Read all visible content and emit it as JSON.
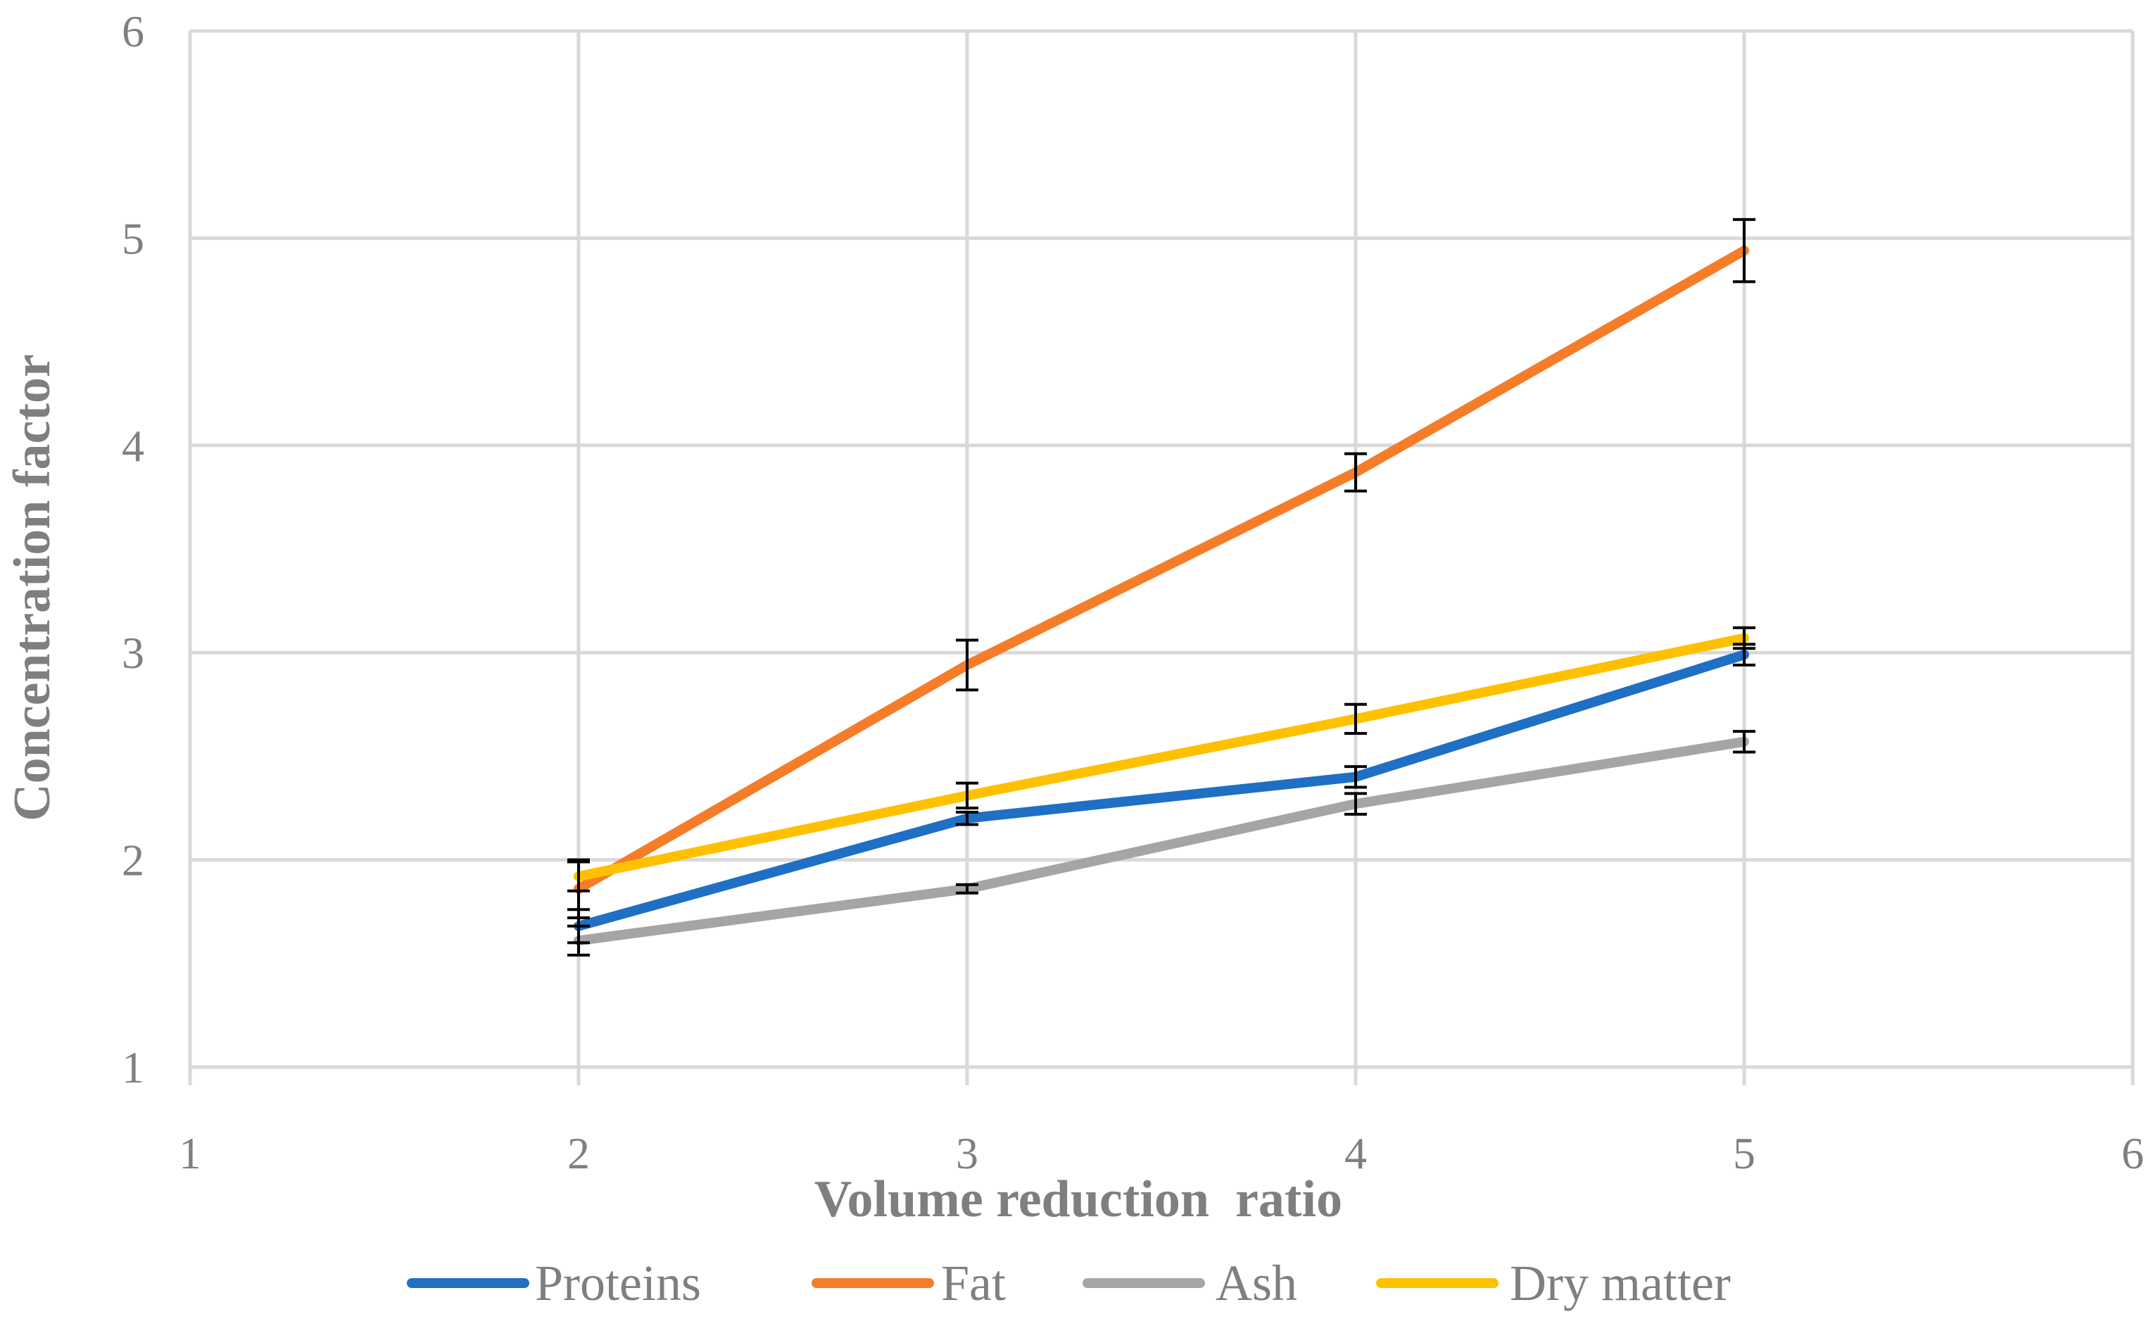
{
  "chart_data": {
    "type": "line",
    "title": "",
    "xlabel": "Volume reduction  ratio",
    "ylabel": "Concentration factor",
    "xlim": [
      1,
      6
    ],
    "ylim": [
      1,
      6
    ],
    "x_ticks": [
      "1",
      "2",
      "3",
      "4",
      "5",
      "6"
    ],
    "y_ticks": [
      "1",
      "2",
      "3",
      "4",
      "5",
      "6"
    ],
    "grid": true,
    "legend_position": "bottom",
    "x": [
      2,
      3,
      4,
      5
    ],
    "series": [
      {
        "name": "Proteins",
        "color": "#1f6fc5",
        "values": [
          1.68,
          2.2,
          2.4,
          2.99
        ],
        "errors": [
          0.08,
          0.03,
          0.05,
          0.05
        ]
      },
      {
        "name": "Fat",
        "color": "#f57d2a",
        "values": [
          1.86,
          2.94,
          3.87,
          4.94
        ],
        "errors": [
          0.14,
          0.12,
          0.09,
          0.15
        ]
      },
      {
        "name": "Ash",
        "color": "#a5a5a5",
        "values": [
          1.61,
          1.86,
          2.27,
          2.57
        ],
        "errors": [
          0.07,
          0.02,
          0.05,
          0.05
        ]
      },
      {
        "name": "Dry matter",
        "color": "#ffc000",
        "values": [
          1.92,
          2.31,
          2.68,
          3.07
        ],
        "errors": [
          0.07,
          0.06,
          0.07,
          0.05
        ]
      }
    ]
  }
}
